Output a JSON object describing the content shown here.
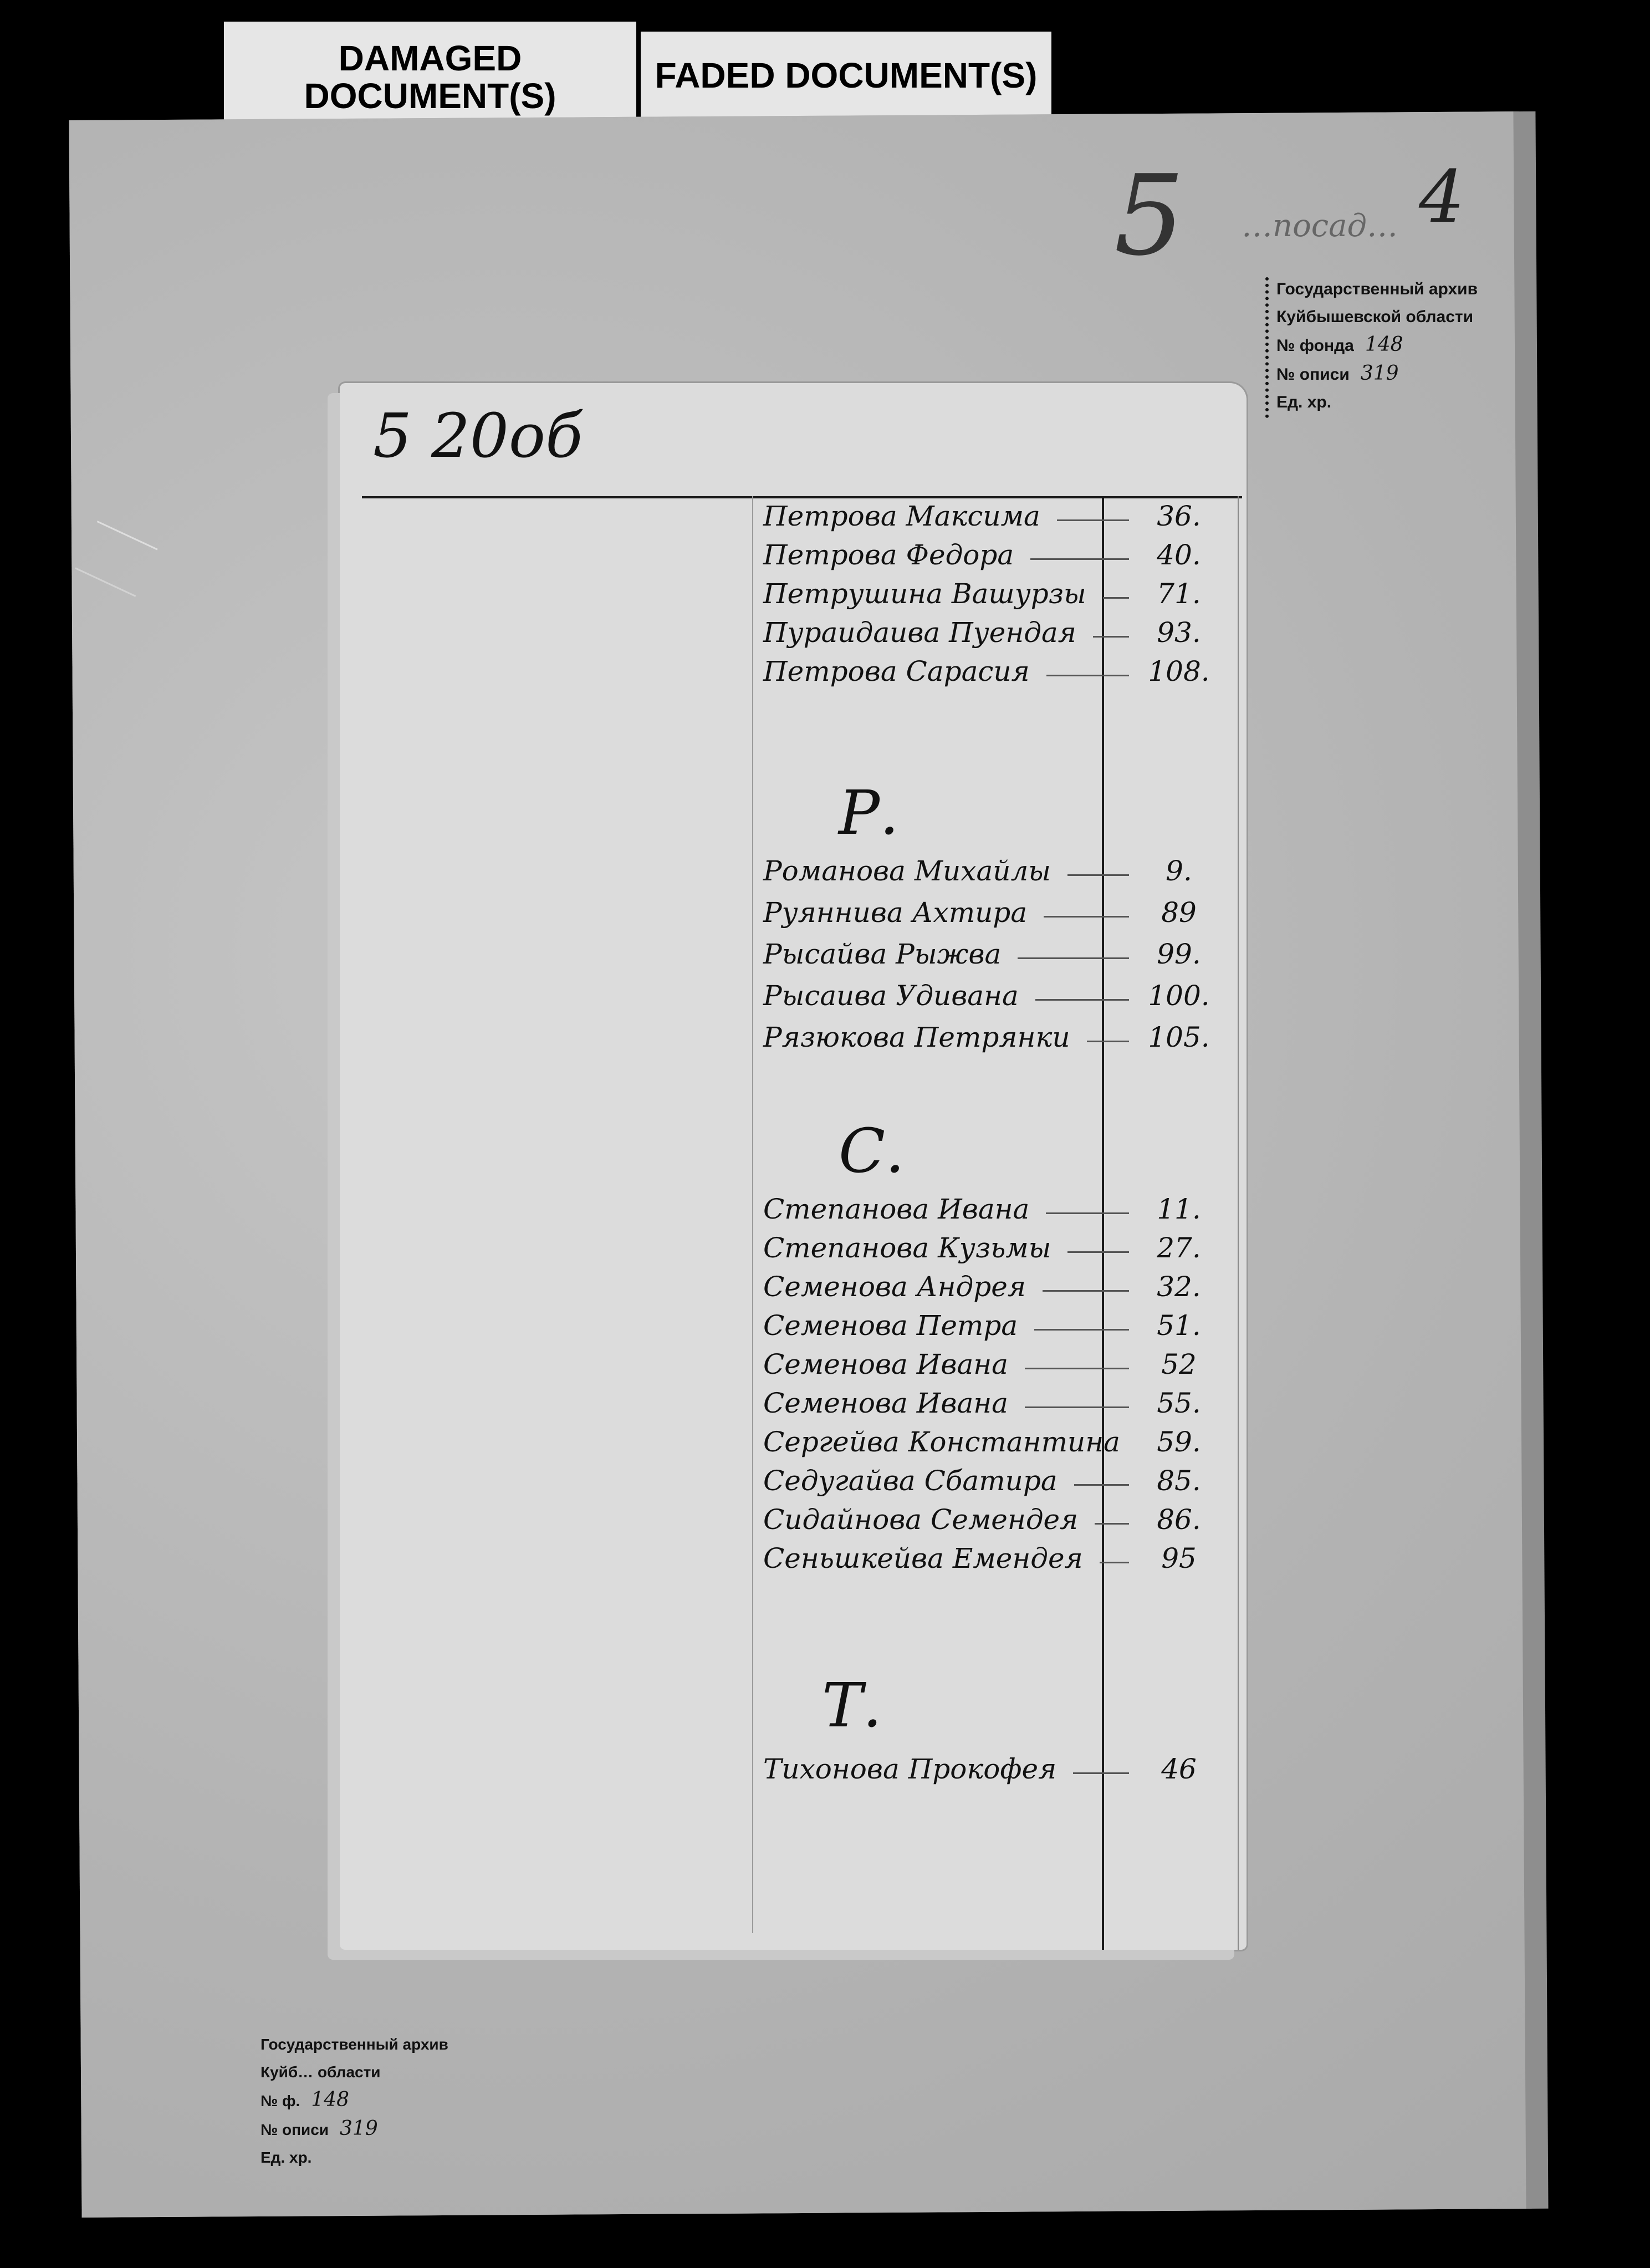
{
  "labels": {
    "damaged": "DAMAGED DOCUMENT(S)",
    "faded": "FADED DOCUMENT(S)"
  },
  "folio": {
    "number": "4",
    "mark": "5",
    "scribble": "…посад…",
    "page_mark": "5 20об"
  },
  "stamp_top": {
    "line1": "Государственный архив",
    "line2": "Куйбышевской области",
    "fond_label": "№ фонда",
    "fond": "148",
    "opis_label": "№ описи",
    "opis": "319",
    "ed_label": "Ед. хр."
  },
  "stamp_bottom": {
    "line1": "Государственный архив",
    "line2": "Куйб… области",
    "fond_label": "№ ф.",
    "fond": "148",
    "opis_label": "№ описи",
    "opis": "319",
    "ed_label": "Ед. хр."
  },
  "index": {
    "groups": [
      {
        "letter": "",
        "entries": [
          {
            "name": "Петрова Максима",
            "page": "36."
          },
          {
            "name": "Петрова Федора",
            "page": "40."
          },
          {
            "name": "Петрушина Вашурзы",
            "page": "71."
          },
          {
            "name": "Пураидаива Пуендая",
            "page": "93."
          },
          {
            "name": "Петрова Сарасия",
            "page": "108."
          }
        ]
      },
      {
        "letter": "Р.",
        "entries": [
          {
            "name": "Романова Михайлы",
            "page": "9."
          },
          {
            "name": "Руяннива Ахтира",
            "page": "89"
          },
          {
            "name": "Рысайва Рыжва",
            "page": "99."
          },
          {
            "name": "Рысаива Удивана",
            "page": "100."
          },
          {
            "name": "Рязюкова Петрянки",
            "page": "105."
          }
        ]
      },
      {
        "letter": "С.",
        "entries": [
          {
            "name": "Степанова Ивана",
            "page": "11."
          },
          {
            "name": "Степанова Кузьмы",
            "page": "27."
          },
          {
            "name": "Семенова Андрея",
            "page": "32."
          },
          {
            "name": "Семенова Петра",
            "page": "51."
          },
          {
            "name": "Семенова Ивана",
            "page": "52"
          },
          {
            "name": "Семенова Ивана",
            "page": "55."
          },
          {
            "name": "Сергейва Константина",
            "page": "59."
          },
          {
            "name": "Седугайва Сбатира",
            "page": "85."
          },
          {
            "name": "Сидайнова Семендея",
            "page": "86."
          },
          {
            "name": "Сеньшкейва Емендея",
            "page": "95"
          }
        ]
      },
      {
        "letter": "Т.",
        "entries": [
          {
            "name": "Тихонова Прокофея",
            "page": "46"
          }
        ]
      }
    ]
  }
}
